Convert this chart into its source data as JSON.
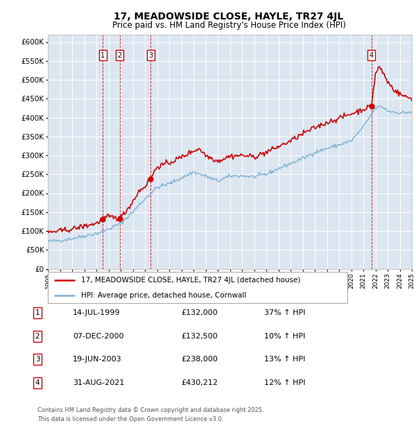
{
  "title": "17, MEADOWSIDE CLOSE, HAYLE, TR27 4JL",
  "subtitle": "Price paid vs. HM Land Registry's House Price Index (HPI)",
  "ylim": [
    0,
    620000
  ],
  "yticks": [
    0,
    50000,
    100000,
    150000,
    200000,
    250000,
    300000,
    350000,
    400000,
    450000,
    500000,
    550000,
    600000
  ],
  "plot_bg_color": "#dce6f1",
  "legend_line1": "17, MEADOWSIDE CLOSE, HAYLE, TR27 4JL (detached house)",
  "legend_line2": "HPI: Average price, detached house, Cornwall",
  "transactions": [
    {
      "num": 1,
      "date": "14-JUL-1999",
      "price": "£132,000",
      "hpi_pct": "37% ↑ HPI",
      "year": 1999.54
    },
    {
      "num": 2,
      "date": "07-DEC-2000",
      "price": "£132,500",
      "hpi_pct": "10% ↑ HPI",
      "year": 2000.93
    },
    {
      "num": 3,
      "date": "19-JUN-2003",
      "price": "£238,000",
      "hpi_pct": "13% ↑ HPI",
      "year": 2003.46
    },
    {
      "num": 4,
      "date": "31-AUG-2021",
      "price": "£430,212",
      "hpi_pct": "12% ↑ HPI",
      "year": 2021.66
    }
  ],
  "transaction_prices": [
    132000,
    132500,
    238000,
    430212
  ],
  "price_line_color": "#cc0000",
  "hpi_line_color": "#7bafd4",
  "footer_line1": "Contains HM Land Registry data © Crown copyright and database right 2025.",
  "footer_line2": "This data is licensed under the Open Government Licence v3.0."
}
